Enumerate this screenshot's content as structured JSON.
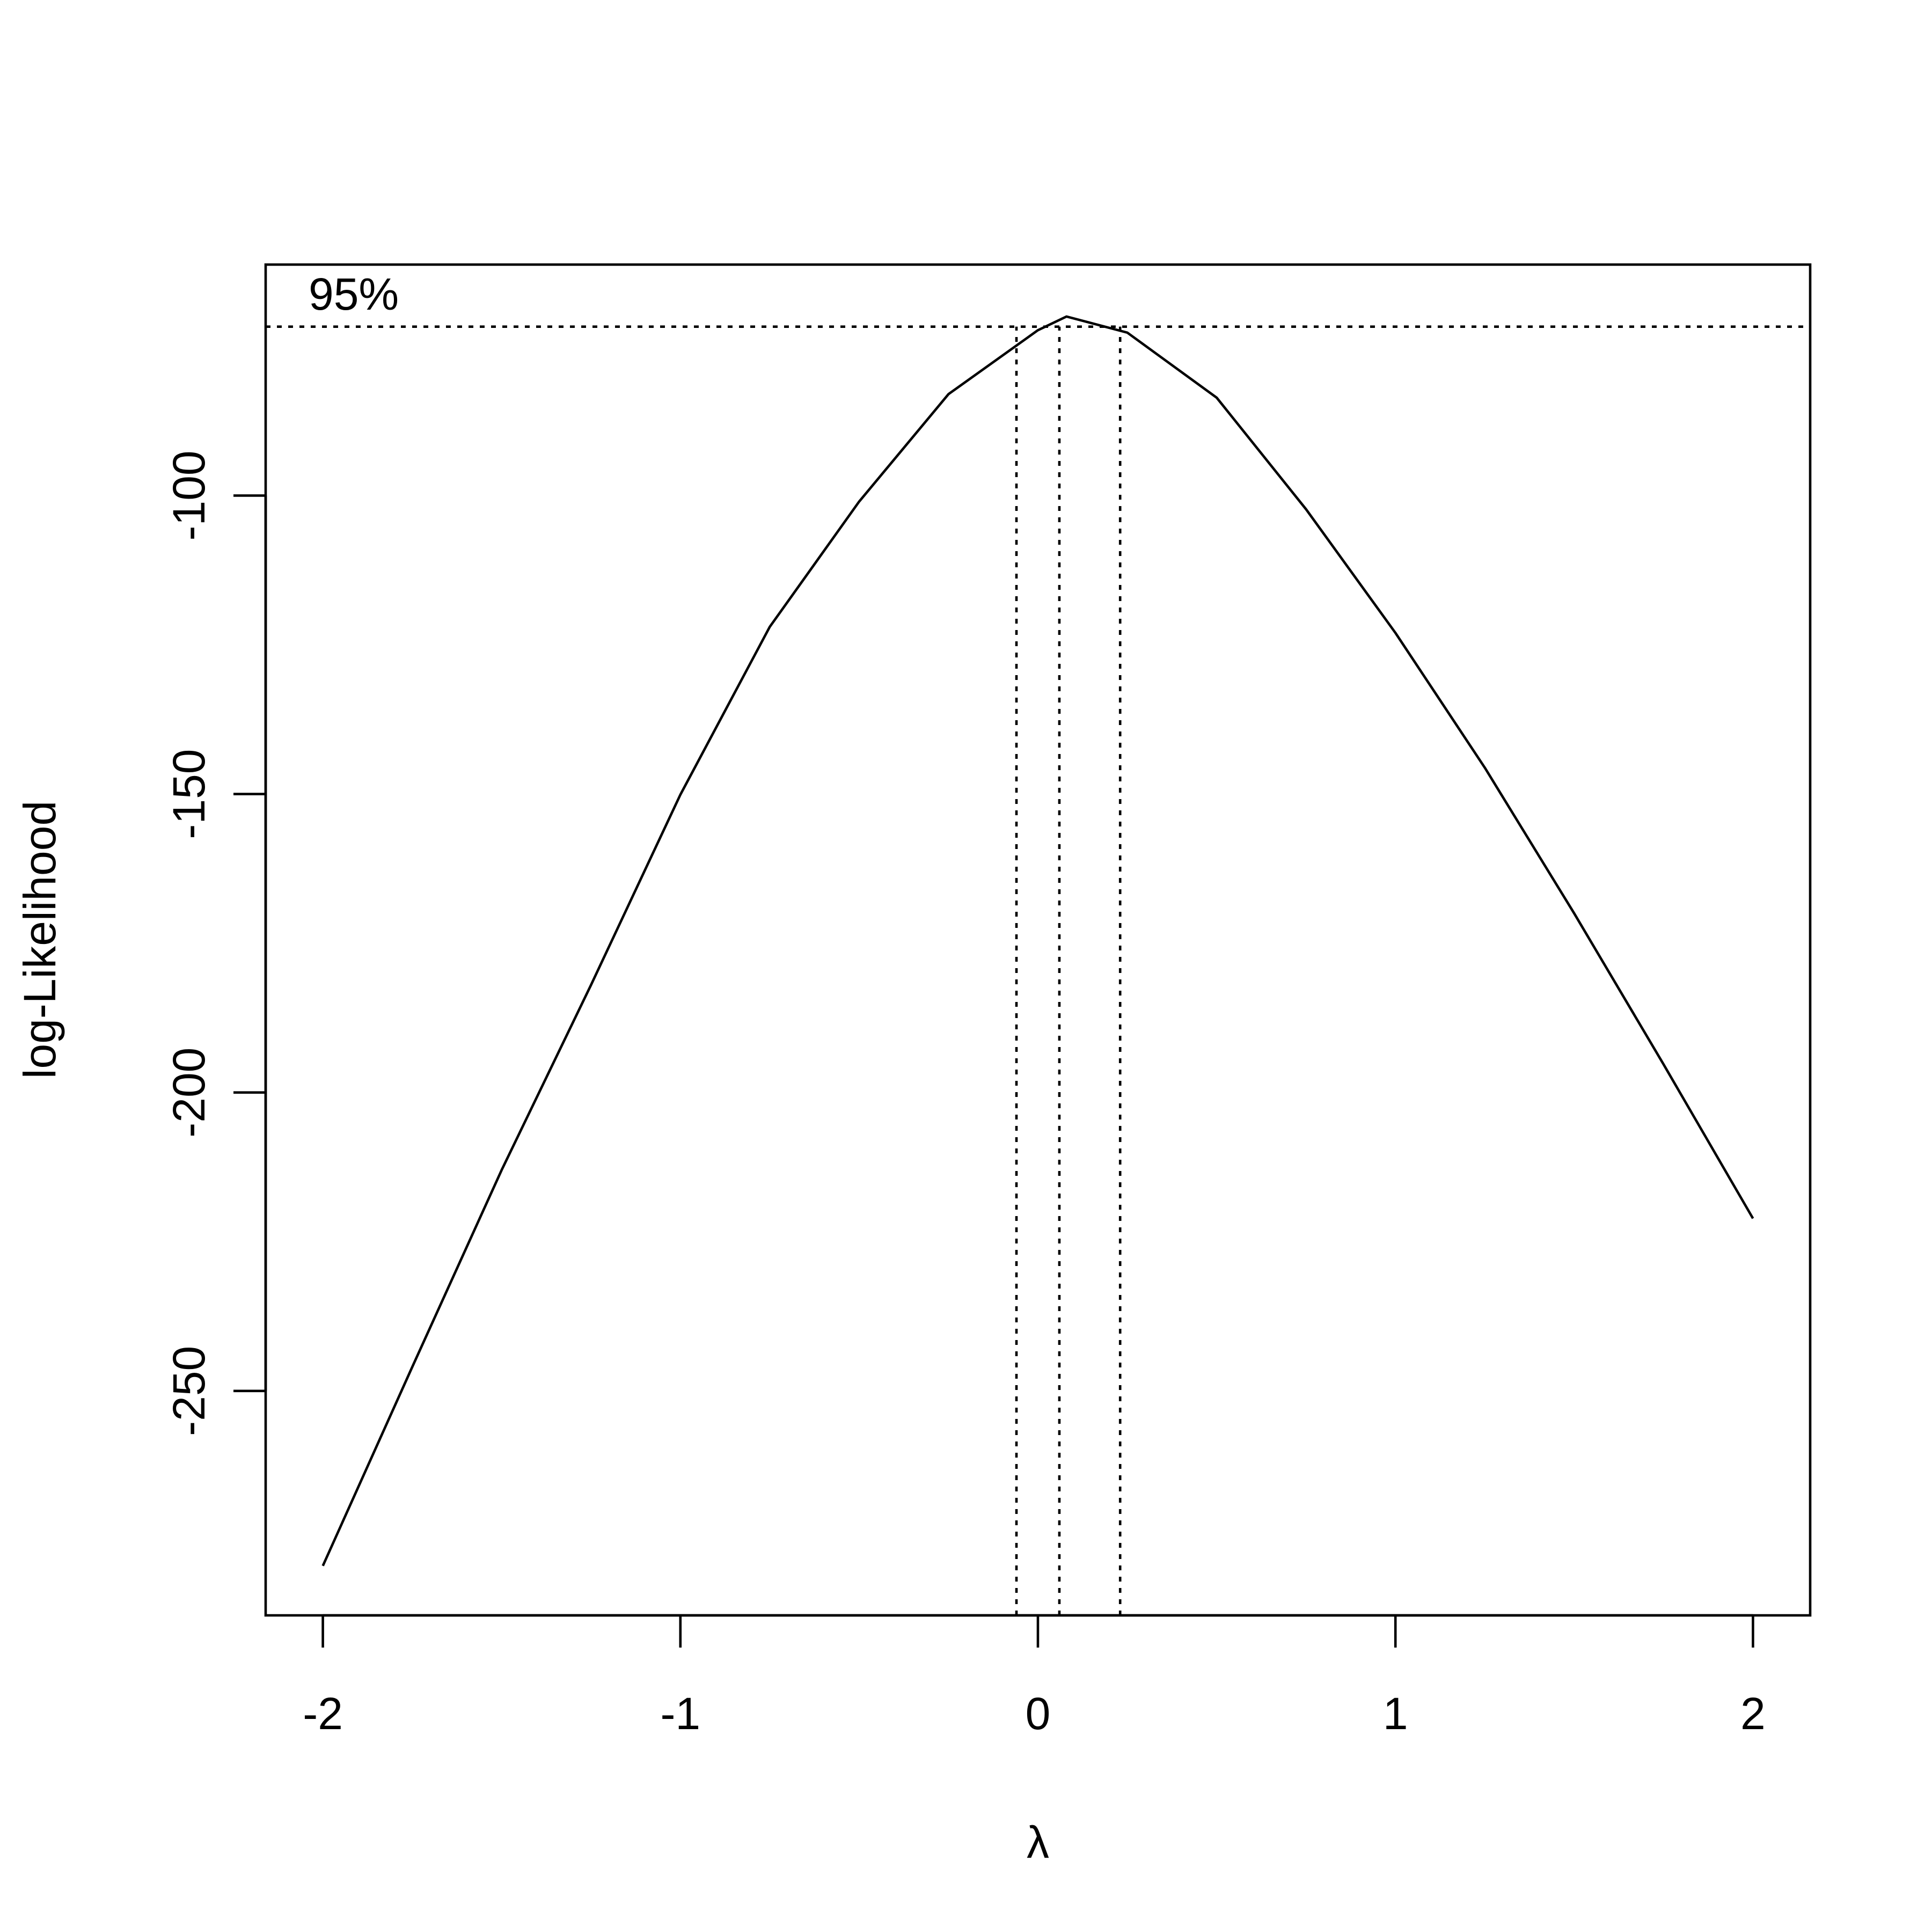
{
  "chart_data": {
    "type": "line",
    "xlabel": "λ",
    "ylabel": "log-Likelihood",
    "x": [
      -2,
      -1.75,
      -1.5,
      -1.25,
      -1,
      -0.75,
      -0.5,
      -0.25,
      0,
      0.08,
      0.25,
      0.5,
      0.75,
      1,
      1.25,
      1.5,
      1.75,
      2
    ],
    "y": [
      -279.3,
      -246,
      -213,
      -182,
      -150.1,
      -122,
      -101,
      -83,
      -72.3,
      -70,
      -72.7,
      -83.6,
      -102.3,
      -123,
      -145.6,
      -170,
      -195.3,
      -221.1
    ],
    "color": "#000000",
    "xlim": [
      -2.16,
      2.16
    ],
    "ylim": [
      -287.6,
      -61.3
    ],
    "xticks": [
      -2,
      -1,
      0,
      1,
      2
    ],
    "yticks": [
      -250,
      -200,
      -150,
      -100
    ],
    "ci_label": "95%",
    "ci_y": -71.7,
    "ci_x": [
      -0.06,
      0.06,
      0.23
    ]
  }
}
